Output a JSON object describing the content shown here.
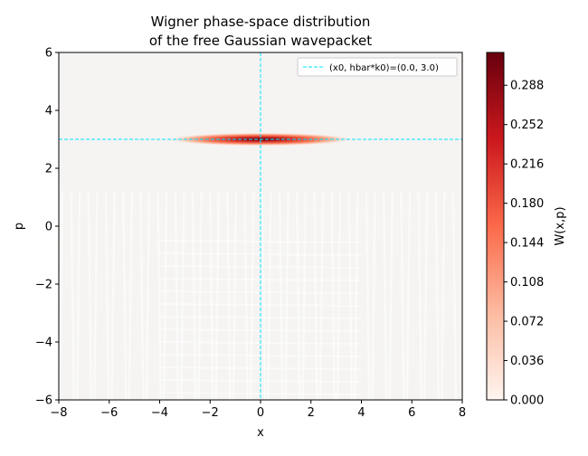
{
  "chart_data": {
    "type": "heatmap",
    "title_lines": [
      "Wigner phase-space distribution",
      "of the free Gaussian wavepacket"
    ],
    "xlabel": "x",
    "ylabel": "p",
    "xlim": [
      -8,
      8
    ],
    "ylim": [
      -6,
      6
    ],
    "x_ticks": [
      -8,
      -6,
      -4,
      -2,
      0,
      2,
      4,
      6,
      8
    ],
    "y_ticks": [
      -6,
      -4,
      -2,
      0,
      2,
      4,
      6
    ],
    "colorbar": {
      "label": "W(x,p)",
      "ticks": [
        "0.000",
        "0.036",
        "0.072",
        "0.108",
        "0.144",
        "0.180",
        "0.216",
        "0.252",
        "0.288"
      ],
      "vmin": 0,
      "vmax": 0.318,
      "colormap": "Reds",
      "colors": [
        "#fff5f0",
        "#fcbba1",
        "#fb6a4a",
        "#cb181d",
        "#67000d"
      ]
    },
    "peak": {
      "x": 0.0,
      "p": 3.0,
      "value": 0.318,
      "sigma_x": 1.6,
      "sigma_p": 0.09
    },
    "reference_lines": {
      "x0": 0.0,
      "p0": 3.0,
      "color": "#00e5ff"
    },
    "legend": {
      "label": "(x0, hbar*k0)=(0.0, 3.0)",
      "placement": "top-right"
    },
    "background_color": "#f6f4f3"
  }
}
